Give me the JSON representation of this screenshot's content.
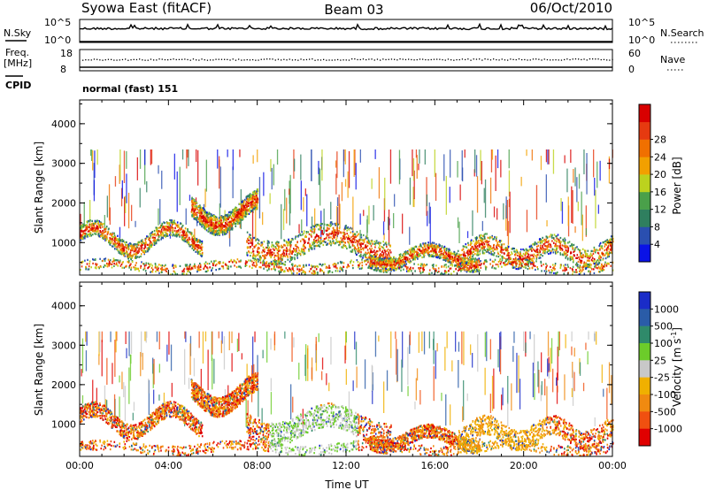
{
  "header": {
    "station": "Syowa East (fitACF)",
    "beam": "Beam 03",
    "date": "06/Oct/2010"
  },
  "noise_panel": {
    "left_label": "N.Sky",
    "right_label": "N.Search",
    "left_ticks": [
      "10^5",
      "10^0"
    ],
    "right_ticks": [
      "10^5",
      "10^0"
    ]
  },
  "freq_panel": {
    "left_label_1": "Freq.",
    "left_label_2": "[MHz]",
    "right_label": "Nave",
    "left_ticks": [
      "18",
      "8"
    ],
    "right_ticks": [
      "60",
      "0"
    ]
  },
  "cpid": {
    "label": "CPID",
    "value": "normal (fast) 151"
  },
  "colors": {
    "power_scale": [
      "#0a12e6",
      "#2a4fb0",
      "#2f7f5f",
      "#4aa04a",
      "#bcd21e",
      "#f2a000",
      "#f07000",
      "#e63a10",
      "#d80000"
    ],
    "velocity_scale": [
      "#1a2cc8",
      "#2a5ca8",
      "#2f8a6a",
      "#6ccc2a",
      "#c8c8c8",
      "#f0b000",
      "#f08a10",
      "#f05010",
      "#e00000"
    ]
  },
  "chart_data": [
    {
      "type": "heatmap",
      "name": "power-panel",
      "ylabel": "Slant Range [km]",
      "ylim": [
        180,
        4600
      ],
      "yticks": [
        "1000",
        "2000",
        "3000",
        "4000"
      ],
      "xlim": [
        0,
        24
      ],
      "colorbar_label": "Power [dB]",
      "colorbar_ticks": [
        "4",
        "8",
        "12",
        "16",
        "20",
        "24",
        "28"
      ],
      "colorbar_range": [
        0,
        32
      ]
    },
    {
      "type": "heatmap",
      "name": "velocity-panel",
      "ylabel": "Slant Range [km]",
      "ylim": [
        180,
        4600
      ],
      "yticks": [
        "1000",
        "2000",
        "3000",
        "4000"
      ],
      "xlabel": "Time UT",
      "xticks": [
        "00:00",
        "04:00",
        "08:00",
        "12:00",
        "16:00",
        "20:00",
        "00:00"
      ],
      "xlim": [
        0,
        24
      ],
      "colorbar_label": "Velocity [m s",
      "colorbar_label_sup": "-1",
      "colorbar_label_end": "]",
      "colorbar_ticks": [
        "1000",
        "500",
        "100",
        "25",
        "-25",
        "-100",
        "-500",
        "-1000"
      ]
    }
  ]
}
